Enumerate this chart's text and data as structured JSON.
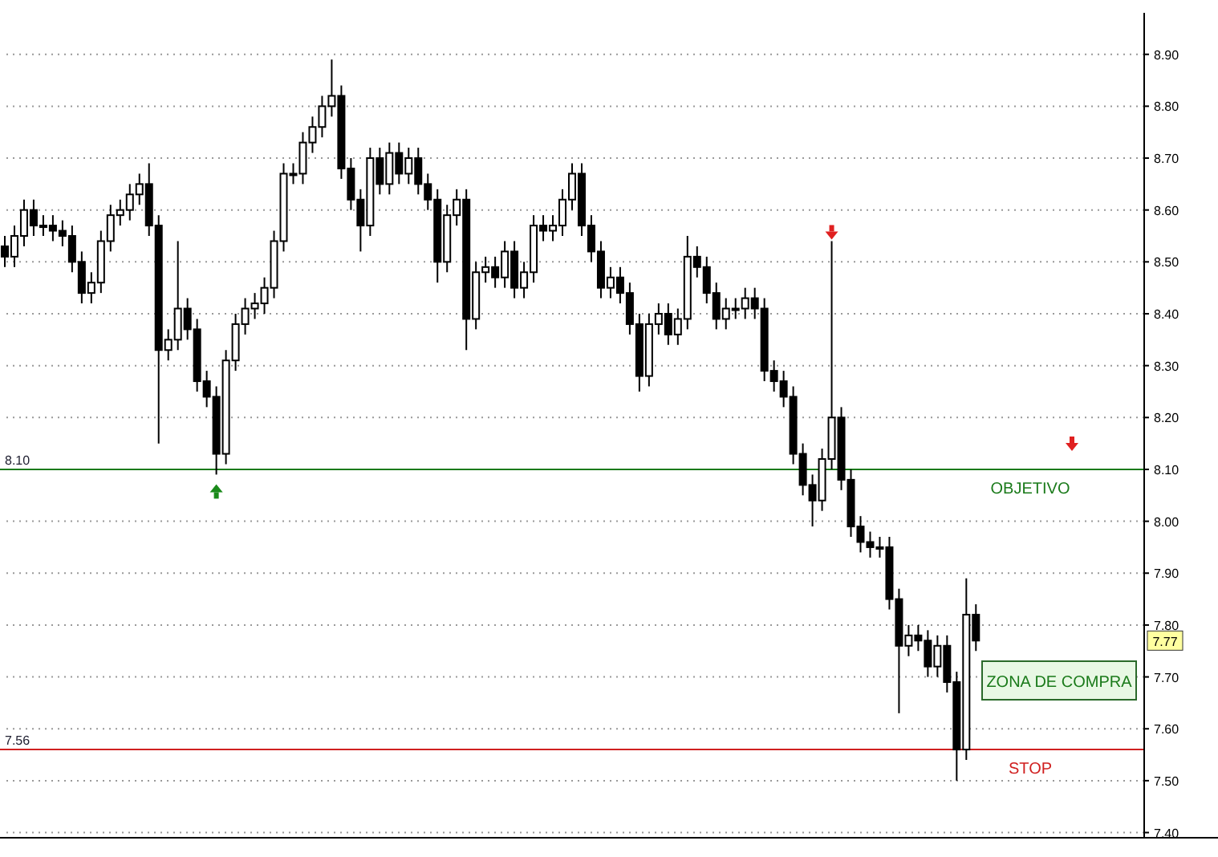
{
  "chart_data": {
    "type": "candlestick",
    "categories": [
      null,
      null,
      null,
      null,
      null,
      null,
      null,
      null,
      null,
      null,
      null,
      null,
      null,
      null,
      null,
      null,
      null,
      null,
      null,
      null,
      null,
      null,
      null,
      null,
      null,
      null,
      null,
      null,
      null,
      null,
      null,
      null,
      null,
      null,
      null,
      null,
      null,
      null,
      null,
      null,
      null,
      null,
      null,
      null,
      null,
      null,
      null,
      null,
      null,
      null,
      null,
      null,
      null,
      null,
      null,
      null,
      null,
      null,
      null,
      null,
      null,
      null,
      null,
      null,
      null,
      null,
      null,
      null,
      null,
      null,
      null,
      null,
      null,
      null,
      null,
      null,
      null,
      null,
      null,
      null,
      null,
      null,
      null,
      null,
      null,
      null,
      null,
      null,
      null,
      null,
      null,
      null,
      null,
      null,
      null,
      null,
      null,
      null,
      null,
      null,
      null,
      null,
      null,
      null,
      null,
      null,
      null,
      null,
      null,
      null,
      null,
      null,
      null,
      null,
      null,
      null,
      null,
      null,
      null
    ],
    "ohlc": [
      [
        8.53,
        8.55,
        8.49,
        8.51
      ],
      [
        8.51,
        8.57,
        8.49,
        8.55
      ],
      [
        8.55,
        8.62,
        8.53,
        8.6
      ],
      [
        8.6,
        8.62,
        8.55,
        8.57
      ],
      [
        8.57,
        8.59,
        8.55,
        8.57
      ],
      [
        8.57,
        8.59,
        8.54,
        8.56
      ],
      [
        8.56,
        8.58,
        8.53,
        8.55
      ],
      [
        8.55,
        8.57,
        8.48,
        8.5
      ],
      [
        8.5,
        8.52,
        8.42,
        8.44
      ],
      [
        8.44,
        8.48,
        8.42,
        8.46
      ],
      [
        8.46,
        8.56,
        8.44,
        8.54
      ],
      [
        8.54,
        8.61,
        8.52,
        8.59
      ],
      [
        8.59,
        8.62,
        8.57,
        8.6
      ],
      [
        8.6,
        8.65,
        8.58,
        8.63
      ],
      [
        8.63,
        8.67,
        8.61,
        8.65
      ],
      [
        8.65,
        8.69,
        8.55,
        8.57
      ],
      [
        8.57,
        8.59,
        8.15,
        8.33
      ],
      [
        8.33,
        8.37,
        8.31,
        8.35
      ],
      [
        8.35,
        8.54,
        8.33,
        8.41
      ],
      [
        8.41,
        8.43,
        8.35,
        8.37
      ],
      [
        8.37,
        8.39,
        8.25,
        8.27
      ],
      [
        8.27,
        8.29,
        8.22,
        8.24
      ],
      [
        8.24,
        8.26,
        8.09,
        8.13
      ],
      [
        8.13,
        8.33,
        8.11,
        8.31
      ],
      [
        8.31,
        8.4,
        8.29,
        8.38
      ],
      [
        8.38,
        8.43,
        8.36,
        8.41
      ],
      [
        8.41,
        8.44,
        8.39,
        8.42
      ],
      [
        8.42,
        8.47,
        8.4,
        8.45
      ],
      [
        8.45,
        8.56,
        8.43,
        8.54
      ],
      [
        8.54,
        8.69,
        8.52,
        8.67
      ],
      [
        8.67,
        8.69,
        8.65,
        8.67
      ],
      [
        8.67,
        8.75,
        8.65,
        8.73
      ],
      [
        8.73,
        8.78,
        8.71,
        8.76
      ],
      [
        8.76,
        8.82,
        8.74,
        8.8
      ],
      [
        8.8,
        8.89,
        8.78,
        8.82
      ],
      [
        8.82,
        8.84,
        8.66,
        8.68
      ],
      [
        8.68,
        8.7,
        8.6,
        8.62
      ],
      [
        8.62,
        8.64,
        8.52,
        8.57
      ],
      [
        8.57,
        8.72,
        8.55,
        8.7
      ],
      [
        8.7,
        8.72,
        8.63,
        8.65
      ],
      [
        8.65,
        8.73,
        8.63,
        8.71
      ],
      [
        8.71,
        8.73,
        8.65,
        8.67
      ],
      [
        8.67,
        8.72,
        8.65,
        8.7
      ],
      [
        8.7,
        8.72,
        8.63,
        8.65
      ],
      [
        8.65,
        8.67,
        8.6,
        8.62
      ],
      [
        8.62,
        8.64,
        8.46,
        8.5
      ],
      [
        8.5,
        8.61,
        8.48,
        8.59
      ],
      [
        8.59,
        8.64,
        8.57,
        8.62
      ],
      [
        8.62,
        8.64,
        8.33,
        8.39
      ],
      [
        8.39,
        8.5,
        8.37,
        8.48
      ],
      [
        8.48,
        8.51,
        8.46,
        8.49
      ],
      [
        8.49,
        8.51,
        8.45,
        8.47
      ],
      [
        8.47,
        8.54,
        8.45,
        8.52
      ],
      [
        8.52,
        8.54,
        8.43,
        8.45
      ],
      [
        8.45,
        8.5,
        8.43,
        8.48
      ],
      [
        8.48,
        8.59,
        8.46,
        8.57
      ],
      [
        8.57,
        8.59,
        8.54,
        8.56
      ],
      [
        8.56,
        8.59,
        8.54,
        8.57
      ],
      [
        8.57,
        8.64,
        8.55,
        8.62
      ],
      [
        8.62,
        8.69,
        8.6,
        8.67
      ],
      [
        8.67,
        8.69,
        8.55,
        8.57
      ],
      [
        8.57,
        8.59,
        8.5,
        8.52
      ],
      [
        8.52,
        8.54,
        8.43,
        8.45
      ],
      [
        8.45,
        8.49,
        8.43,
        8.47
      ],
      [
        8.47,
        8.49,
        8.42,
        8.44
      ],
      [
        8.44,
        8.46,
        8.36,
        8.38
      ],
      [
        8.38,
        8.4,
        8.25,
        8.28
      ],
      [
        8.28,
        8.4,
        8.26,
        8.38
      ],
      [
        8.38,
        8.42,
        8.36,
        8.4
      ],
      [
        8.4,
        8.42,
        8.34,
        8.36
      ],
      [
        8.36,
        8.41,
        8.34,
        8.39
      ],
      [
        8.39,
        8.55,
        8.37,
        8.51
      ],
      [
        8.51,
        8.53,
        8.47,
        8.49
      ],
      [
        8.49,
        8.51,
        8.42,
        8.44
      ],
      [
        8.44,
        8.46,
        8.37,
        8.39
      ],
      [
        8.39,
        8.43,
        8.37,
        8.41
      ],
      [
        8.41,
        8.43,
        8.39,
        8.41
      ],
      [
        8.41,
        8.45,
        8.39,
        8.43
      ],
      [
        8.43,
        8.45,
        8.39,
        8.41
      ],
      [
        8.41,
        8.43,
        8.27,
        8.29
      ],
      [
        8.29,
        8.31,
        8.25,
        8.27
      ],
      [
        8.27,
        8.29,
        8.22,
        8.24
      ],
      [
        8.24,
        8.26,
        8.11,
        8.13
      ],
      [
        8.13,
        8.15,
        8.05,
        8.07
      ],
      [
        8.07,
        8.09,
        7.99,
        8.04
      ],
      [
        8.04,
        8.14,
        8.02,
        8.12
      ],
      [
        8.12,
        8.54,
        8.1,
        8.2
      ],
      [
        8.2,
        8.22,
        8.06,
        8.08
      ],
      [
        8.08,
        8.1,
        7.97,
        7.99
      ],
      [
        7.99,
        8.01,
        7.94,
        7.96
      ],
      [
        7.96,
        7.98,
        7.93,
        7.95
      ],
      [
        7.95,
        7.97,
        7.93,
        7.95
      ],
      [
        7.95,
        7.97,
        7.83,
        7.85
      ],
      [
        7.85,
        7.87,
        7.63,
        7.76
      ],
      [
        7.76,
        7.8,
        7.74,
        7.78
      ],
      [
        7.78,
        7.8,
        7.75,
        7.77
      ],
      [
        7.77,
        7.79,
        7.7,
        7.72
      ],
      [
        7.72,
        7.78,
        7.7,
        7.76
      ],
      [
        7.76,
        7.78,
        7.67,
        7.69
      ],
      [
        7.69,
        7.71,
        7.5,
        7.56
      ],
      [
        7.56,
        7.89,
        7.54,
        7.82
      ],
      [
        7.82,
        7.84,
        7.75,
        7.77
      ],
      null,
      null,
      null,
      null,
      null,
      null,
      null,
      null,
      null,
      null,
      null,
      null,
      null,
      null,
      null,
      null,
      null
    ],
    "color": "#000000",
    "ylim": [
      7.39,
      8.98
    ],
    "yticks": [
      {
        "value": 8.9,
        "label": "8.90"
      },
      {
        "value": 8.8,
        "label": "8.80"
      },
      {
        "value": 8.7,
        "label": "8.70"
      },
      {
        "value": 8.6,
        "label": "8.60"
      },
      {
        "value": 8.5,
        "label": "8.50"
      },
      {
        "value": 8.4,
        "label": "8.40"
      },
      {
        "value": 8.3,
        "label": "8.30"
      },
      {
        "value": 8.2,
        "label": "8.20"
      },
      {
        "value": 8.1,
        "label": "8.10"
      },
      {
        "value": 8.0,
        "label": "8.00"
      },
      {
        "value": 7.9,
        "label": "7.90"
      },
      {
        "value": 7.8,
        "label": "7.80"
      },
      {
        "value": 7.7,
        "label": "7.70"
      },
      {
        "value": 7.6,
        "label": "7.60"
      },
      {
        "value": 7.5,
        "label": "7.50"
      },
      {
        "value": 7.4,
        "label": "7.40"
      }
    ],
    "grid": "y",
    "tick_labels": "y",
    "ref_lines": [
      {
        "axis": "y",
        "value": 8.1,
        "label": "8.10",
        "color": "#1a7a1a"
      },
      {
        "axis": "y",
        "value": 7.56,
        "label": "7.56",
        "color": "#d02020"
      }
    ],
    "annotations": [
      "ZONA DE COMPRA",
      {
        "text": "OBJETIVO",
        "y": 8.1
      },
      {
        "text": "STOP",
        "y": 7.56
      },
      {
        "text": "7.77",
        "y": 7.77
      }
    ]
  }
}
